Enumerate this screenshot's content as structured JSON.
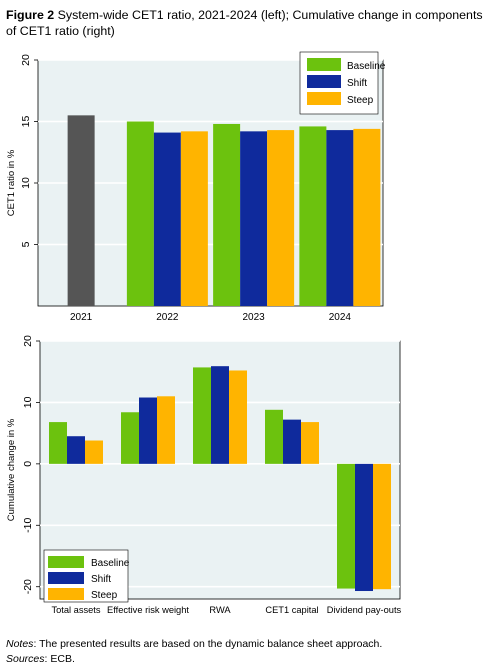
{
  "figure": {
    "label": "Figure 2",
    "title": "System-wide CET1 ratio, 2021-2024 (left); Cumulative change in components of CET1 ratio (right)"
  },
  "colors": {
    "baseline": "#6CC20E",
    "shift": "#0F2A9C",
    "steep": "#FFB400",
    "y2021": "#555555",
    "plot_bg": "#EAF2F3",
    "page_bg": "#FFFFFF"
  },
  "chart_data": [
    {
      "type": "bar",
      "xlabel": "",
      "ylabel": "CET1 ratio in %",
      "ylim": [
        0,
        20
      ],
      "yticks": [
        5,
        10,
        15,
        20
      ],
      "categories": [
        "2021",
        "2022",
        "2023",
        "2024"
      ],
      "series": [
        {
          "name": "",
          "color_key": "y2021",
          "values": [
            15.5,
            null,
            null,
            null
          ]
        },
        {
          "name": "Baseline",
          "color_key": "baseline",
          "values": [
            null,
            15.0,
            14.8,
            14.6
          ]
        },
        {
          "name": "Shift",
          "color_key": "shift",
          "values": [
            null,
            14.1,
            14.2,
            14.3
          ]
        },
        {
          "name": "Steep",
          "color_key": "steep",
          "values": [
            null,
            14.2,
            14.3,
            14.4
          ]
        }
      ],
      "legend": {
        "placement": "top-right",
        "entries": [
          "Baseline",
          "Shift",
          "Steep"
        ]
      },
      "grid": true
    },
    {
      "type": "bar",
      "xlabel": "",
      "ylabel": "Cumulative change in %",
      "ylim": [
        -22,
        20
      ],
      "yticks": [
        -20,
        -10,
        0,
        10,
        20
      ],
      "categories": [
        "Total assets",
        "Effective risk weight",
        "RWA",
        "CET1 capital",
        "Dividend pay-outs"
      ],
      "series": [
        {
          "name": "Baseline",
          "color_key": "baseline",
          "values": [
            6.8,
            8.4,
            15.7,
            8.8,
            -20.3
          ]
        },
        {
          "name": "Shift",
          "color_key": "shift",
          "values": [
            4.5,
            10.8,
            15.9,
            7.2,
            -20.7
          ]
        },
        {
          "name": "Steep",
          "color_key": "steep",
          "values": [
            3.8,
            11.0,
            15.2,
            6.8,
            -20.4
          ]
        }
      ],
      "legend": {
        "placement": "bottom-left",
        "entries": [
          "Baseline",
          "Shift",
          "Steep"
        ]
      },
      "grid": true
    }
  ],
  "notes": {
    "notes_label": "Notes",
    "notes_text": ": The presented results are based on the dynamic balance sheet approach.",
    "sources_label": "Sources",
    "sources_text": ": ECB."
  }
}
